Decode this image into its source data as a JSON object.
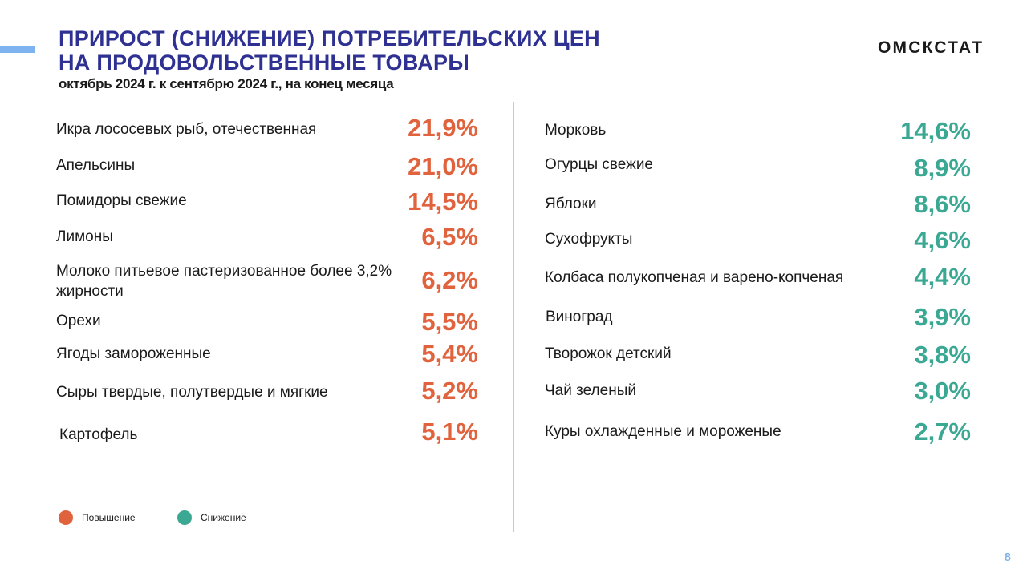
{
  "header": {
    "title_line1": "ПРИРОСТ (СНИЖЕНИЕ) ПОТРЕБИТЕЛЬСКИХ ЦЕН",
    "title_line2": "НА ПРОДОВОЛЬСТВЕННЫЕ ТОВАРЫ",
    "subtitle": "октябрь 2024 г. к сентябрю 2024 г., на конец месяца",
    "brand": "ОМСКСТАТ"
  },
  "colors": {
    "increase": "#e0633e",
    "decrease": "#3aa893",
    "title": "#2e3192",
    "accent": "#7db4f0"
  },
  "increase": [
    {
      "label": "Икра лососевых рыб, отечественная",
      "value": "21,9%"
    },
    {
      "label": "Апельсины",
      "value": "21,0%"
    },
    {
      "label": "Помидоры  свежие",
      "value": "14,5%"
    },
    {
      "label": "Лимоны",
      "value": "6,5%"
    },
    {
      "label": "Молоко питьевое пастеризованное более 3,2% жирности",
      "value": "6,2%"
    },
    {
      "label": "Орехи",
      "value": "5,5%"
    },
    {
      "label": "Ягоды замороженные",
      "value": "5,4%"
    },
    {
      "label": "Сыры твердые, полутвердые и мягкие",
      "value": "5,2%"
    },
    {
      "label": "Картофель",
      "value": "5,1%"
    }
  ],
  "decrease": [
    {
      "label": "Морковь",
      "value": "14,6%"
    },
    {
      "label": "Огурцы свежие",
      "value": "8,9%"
    },
    {
      "label": "Яблоки",
      "value": "8,6%"
    },
    {
      "label": "Сухофрукты",
      "value": "4,6%"
    },
    {
      "label": "Колбаса полукопченая  и варено-копченая",
      "value": "4,4%"
    },
    {
      "label": "Виноград",
      "value": "3,9%"
    },
    {
      "label": "Творожок детский",
      "value": "3,8%"
    },
    {
      "label": "Чай зеленый",
      "value": "3,0%"
    },
    {
      "label": "Куры охлажденные  и мороженые",
      "value": "2,7%"
    }
  ],
  "legend": {
    "increase_label": "Повышение",
    "decrease_label": "Снижение"
  },
  "page_number": "8"
}
